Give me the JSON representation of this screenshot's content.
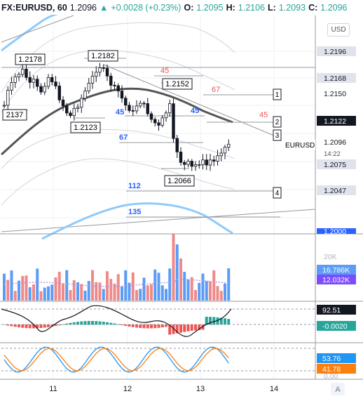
{
  "header": {
    "symbol": "FX:EURUSD, 60",
    "last": "1.2096",
    "change_icon": "up-triangle-icon",
    "change": "+0.0028 (+0.23%)",
    "open_label": "O:",
    "open": "1.2095",
    "high_label": "H:",
    "high": "1.2106",
    "low_label": "L:",
    "low": "1.2093",
    "close_label": "C:",
    "close": "1.2096"
  },
  "currency_button": "USD",
  "price_axis": {
    "ticks": [
      "1.2196",
      "1.2168",
      "1.2150",
      "1.2122",
      "1.2096",
      "1.2075",
      "1.2047",
      "1.2000"
    ],
    "current_price": "1.2096",
    "countdown": "14:22",
    "symbol_tag": "EURUSD"
  },
  "annotations": {
    "swing_labels": [
      "1.2178",
      "1.2182",
      "1.2152",
      "2137",
      "1.2123",
      "1.2066"
    ],
    "fib_red": [
      "45",
      "67",
      "45"
    ],
    "fib_blue": [
      "45",
      "45",
      "67",
      "112",
      "135"
    ],
    "level_boxes": [
      "1",
      "2",
      "3",
      "4"
    ]
  },
  "volume_pane": {
    "axis_label": "20K",
    "volume_value": "16.786K",
    "volume_ma_value": "12.032K"
  },
  "macd_pane": {
    "value_1": "92.51",
    "value_2": "-0.0020"
  },
  "stoch_pane": {
    "k_value": "53.76",
    "d_value": "41.78",
    "axis_label": "0.00"
  },
  "time_axis": {
    "labels": [
      "11",
      "12",
      "13",
      "14"
    ],
    "auto_scale_button": "A"
  },
  "colors": {
    "up": "#26a69a",
    "down": "#ef5350",
    "vol_up": "#5b9cf6",
    "vol_down": "#ef8a8a",
    "stoch_k": "#2196f3",
    "stoch_d": "#ff7f0e",
    "fib_red": "#ef5350",
    "fib_blue": "#2962ff"
  }
}
